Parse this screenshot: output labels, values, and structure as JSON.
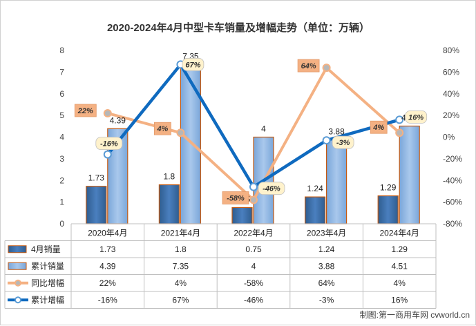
{
  "chart_data": {
    "type": "bar",
    "title": "2020-2024年4月中型卡车销量及增幅走势（单位：万辆）",
    "categories": [
      "2020年4月",
      "2021年4月",
      "2022年4月",
      "2023年4月",
      "2024年4月"
    ],
    "y_left": {
      "min": 0,
      "max": 8,
      "step": 1
    },
    "y_right": {
      "min": -80,
      "max": 80,
      "step": 20,
      "unit": "%"
    },
    "series": [
      {
        "name": "4月销量",
        "kind": "bar",
        "axis": "left",
        "values": [
          1.73,
          1.8,
          0.75,
          1.24,
          1.29
        ],
        "labels": [
          "1.73",
          "1.8",
          "0.75",
          "1.24",
          "1.29"
        ],
        "color": "#3d6fa6"
      },
      {
        "name": "累计销量",
        "kind": "bar",
        "axis": "left",
        "values": [
          4.39,
          7.35,
          4,
          3.88,
          4.51
        ],
        "labels": [
          "4.39",
          "7.35",
          "4",
          "3.88",
          "4.51"
        ],
        "color": "#8fb4e0"
      },
      {
        "name": "同比增幅",
        "kind": "line",
        "axis": "right",
        "values": [
          22,
          4,
          -58,
          64,
          4
        ],
        "labels": [
          "22%",
          "4%",
          "-58%",
          "64%",
          "4%"
        ],
        "color": "#f4b183"
      },
      {
        "name": "累计增幅",
        "kind": "line",
        "axis": "right",
        "values": [
          -16,
          67,
          -46,
          -3,
          16
        ],
        "labels": [
          "-16%",
          "67%",
          "-46%",
          "-3%",
          "16%"
        ],
        "color": "#0f6abf"
      }
    ],
    "grid": false,
    "legend": "data-table-bottom"
  },
  "credit": "制图:第一商用车网 cvworld.cn"
}
